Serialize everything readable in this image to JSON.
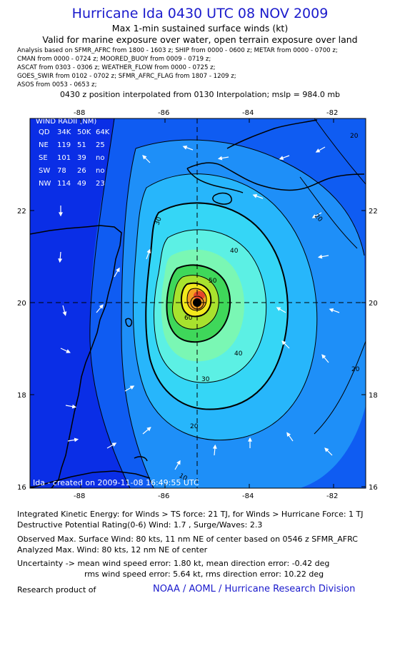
{
  "header": {
    "title": "Hurricane Ida 0430 UTC 08 NOV 2009",
    "subtitle1": "Max 1-min sustained surface winds (kt)",
    "subtitle2": "Valid for marine exposure over water, open terrain exposure over land"
  },
  "sources": [
    "Analysis based on   SFMR_AFRC from 1800 - 1603 z;  SHIP from 0000 - 0600 z;  METAR from 0000 - 0700 z;",
    "CMAN from 0000 - 0724 z;  MOORED_BUOY from 0009 - 0719 z;",
    "ASCAT from 0303 - 0306 z;  WEATHER_FLOW from 0000 - 0725 z;",
    "GOES_SWIR from 0102 - 0702 z;  SFMR_AFRC_FLAG from 1807 - 1209 z;",
    "ASOS from 0053 - 0653 z;"
  ],
  "interpolation_note": "0430 z position interpolated from 0130 Interpolation; mslp = 984.0 mb",
  "map": {
    "lon_ticks": [
      "-88",
      "-86",
      "-84",
      "-82"
    ],
    "lat_ticks": [
      "22",
      "20",
      "18",
      "16"
    ],
    "contour_labels": [
      "20",
      "20",
      "20",
      "30",
      "30",
      "40",
      "40",
      "50",
      "60",
      "20",
      "10"
    ],
    "wind_radii": {
      "title": "WIND RADII (NM)",
      "header": [
        "QD",
        "34K",
        "50K",
        "64K"
      ],
      "rows": [
        [
          "NE",
          "119",
          "51",
          "25"
        ],
        [
          "SE",
          "101",
          "39",
          "no"
        ],
        [
          "SW",
          "78",
          "26",
          "no"
        ],
        [
          "NW",
          "114",
          "49",
          "23"
        ]
      ]
    },
    "credit": "Ida - created on 2009-11-08 16:49:55 UTC",
    "colors": {
      "outer": "#0a2ee6",
      "band2": "#0f5cf2",
      "band3": "#1e8ff8",
      "band4": "#27b6fb",
      "band5": "#35d6f6",
      "band6": "#5cf0e4",
      "band7": "#7af7b4",
      "band8": "#3fd75a",
      "band9": "#a8e22e",
      "band10": "#f2e81c",
      "band11": "#f5a021",
      "core": "#e5462a"
    }
  },
  "footer": {
    "ike": "Integrated Kinetic Energy:  for Winds > TS force: 21 TJ,  for Winds > Hurricane Force: 1 TJ",
    "dpr": "Destructive Potential Rating(0-6)   Wind: 1.7 , Surge/Waves: 2.3",
    "obs": "Observed Max. Surface Wind: 80 kts, 11 nm NE of center based on 0546 z SFMR_AFRC",
    "analyzed": "Analyzed Max. Wind: 80 kts, 12 nm NE of center",
    "uncert1": "Uncertainty -> mean wind speed error: 1.80 kt,   mean direction error:  -0.42 deg",
    "uncert2": "rms wind speed error: 5.64 kt,   rms direction error: 10.22 deg",
    "research": "Research product of",
    "org": "NOAA / AOML / Hurricane Research Division"
  }
}
